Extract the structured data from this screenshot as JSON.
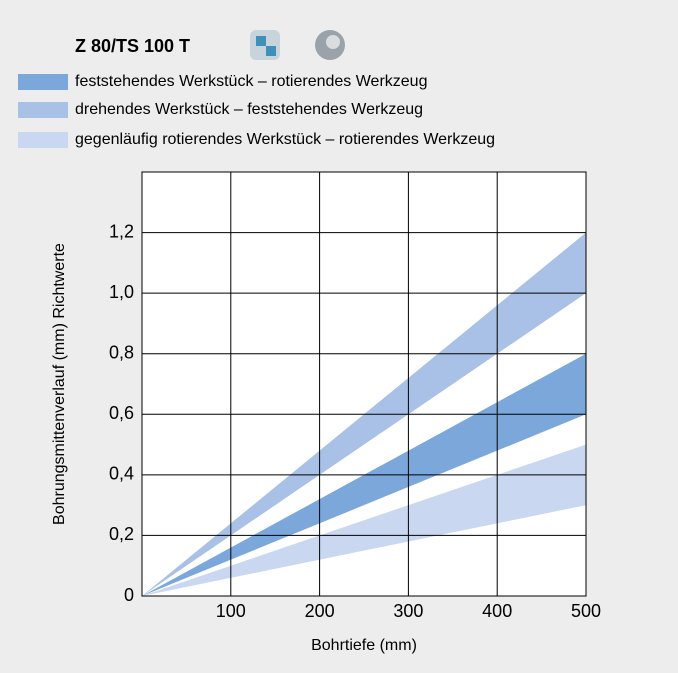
{
  "chart_data": {
    "type": "range-area",
    "title": "Z 80/TS 100 T",
    "x_label": "Bohrtiefe (mm)",
    "y_label": "Bohrungsmittenverlauf (mm) Richtwerte",
    "x": [
      0,
      500
    ],
    "series": [
      {
        "name": "feststehendes Werkstück – rotierendes Werkzeug",
        "color": "#7ba7da",
        "low": [
          0,
          0.6
        ],
        "high": [
          0,
          0.8
        ]
      },
      {
        "name": "drehendes Werkstück – feststehendes Werkzeug",
        "color": "#a9c1e6",
        "low": [
          0,
          1.0
        ],
        "high": [
          0,
          1.2
        ]
      },
      {
        "name": "gegenläufig rotierendes Werkstück – rotierendes Werkzeug",
        "color": "#c9d7f1",
        "low": [
          0,
          0.3
        ],
        "high": [
          0,
          0.5
        ]
      }
    ],
    "xlim": [
      0,
      500
    ],
    "ylim": [
      0,
      1.4
    ],
    "xticks": [
      100,
      200,
      300,
      400,
      500
    ],
    "yticks": [
      0,
      {
        "value": 0.2,
        "label": "0,2"
      },
      {
        "value": 0.4,
        "label": "0,4"
      },
      {
        "value": 0.6,
        "label": "0,6"
      },
      {
        "value": 0.8,
        "label": "0,8"
      },
      {
        "value": 1.0,
        "label": "1,0"
      },
      {
        "value": 1.2,
        "label": "1,2"
      }
    ],
    "grid": true
  }
}
